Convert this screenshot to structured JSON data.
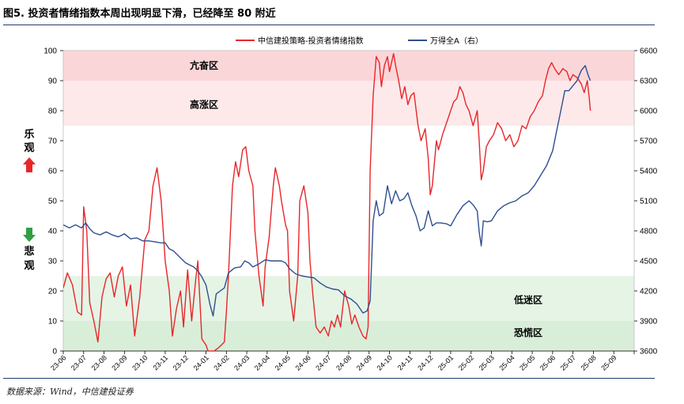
{
  "header": {
    "title": "图5. 投资者情绪指数本周出现明显下滑，已经降至 80 附近"
  },
  "footer": {
    "source": "数据来源：Wind，中信建投证券"
  },
  "side_labels": {
    "optimistic": "乐观",
    "pessimistic": "悲观"
  },
  "colors": {
    "sentiment": "#e8262a",
    "index": "#2f4f8f",
    "panic_band": "#e6f4e6",
    "high_band": "#fde9ea",
    "frenzy_band": "#fbd6d9",
    "up_arrow": "#e8262a",
    "down_arrow": "#2ea043",
    "rule": "#1f3c6e"
  },
  "chart_data": {
    "type": "line",
    "title": "",
    "xlabel": "",
    "ylabel": "",
    "x_ticks": [
      "23-06",
      "23-07",
      "23-08",
      "23-09",
      "23-10",
      "23-11",
      "23-12",
      "24-01",
      "24-02",
      "24-03",
      "24-04",
      "24-05",
      "24-06",
      "24-07",
      "24-08",
      "24-09",
      "24-10",
      "24-11",
      "24-12",
      "25-01",
      "25-02",
      "25-03",
      "25-04",
      "25-05",
      "25-06",
      "25-07",
      "25-08",
      "25-09"
    ],
    "y_left": {
      "min": 0,
      "max": 100,
      "ticks": [
        "0",
        "10",
        "20",
        "30",
        "40",
        "50",
        "60",
        "70",
        "80",
        "90",
        "100"
      ]
    },
    "y_right": {
      "min": 3600,
      "max": 6600,
      "ticks": [
        "3600",
        "3900",
        "4200",
        "4500",
        "4800",
        "5100",
        "5400",
        "5700",
        "6000",
        "6300",
        "6600"
      ]
    },
    "zones": [
      {
        "label": "亢奋区",
        "from": 90,
        "to": 100
      },
      {
        "label": "高涨区",
        "from": 75,
        "to": 90
      },
      {
        "label": "低迷区",
        "from": 10,
        "to": 25
      },
      {
        "label": "恐慌区",
        "from": 0,
        "to": 10
      }
    ],
    "legend_position": "top",
    "grid": false,
    "series": [
      {
        "name": "中信建投策略-投资者情绪指数",
        "axis": "left",
        "points": [
          [
            0,
            21
          ],
          [
            0.2,
            26
          ],
          [
            0.45,
            22
          ],
          [
            0.7,
            13
          ],
          [
            0.9,
            12
          ],
          [
            1.0,
            48
          ],
          [
            1.15,
            40
          ],
          [
            1.3,
            16
          ],
          [
            1.5,
            10
          ],
          [
            1.7,
            3
          ],
          [
            1.9,
            18
          ],
          [
            2.1,
            24
          ],
          [
            2.3,
            26
          ],
          [
            2.5,
            18
          ],
          [
            2.7,
            25
          ],
          [
            2.9,
            28
          ],
          [
            3.1,
            15
          ],
          [
            3.3,
            22
          ],
          [
            3.5,
            5
          ],
          [
            3.75,
            18
          ],
          [
            4.0,
            37
          ],
          [
            4.2,
            40
          ],
          [
            4.4,
            55
          ],
          [
            4.6,
            61
          ],
          [
            4.8,
            50
          ],
          [
            5.0,
            30
          ],
          [
            5.2,
            20
          ],
          [
            5.35,
            5
          ],
          [
            5.55,
            14
          ],
          [
            5.75,
            20
          ],
          [
            5.9,
            8
          ],
          [
            6.1,
            27
          ],
          [
            6.3,
            10
          ],
          [
            6.5,
            24
          ],
          [
            6.6,
            30
          ],
          [
            6.8,
            4
          ],
          [
            7.0,
            2
          ],
          [
            7.1,
            0
          ],
          [
            7.4,
            0
          ],
          [
            7.6,
            1
          ],
          [
            7.9,
            3
          ],
          [
            8.0,
            13
          ],
          [
            8.1,
            25
          ],
          [
            8.3,
            55
          ],
          [
            8.45,
            63
          ],
          [
            8.6,
            58
          ],
          [
            8.8,
            67
          ],
          [
            8.95,
            68
          ],
          [
            9.1,
            60
          ],
          [
            9.3,
            55
          ],
          [
            9.4,
            40
          ],
          [
            9.6,
            25
          ],
          [
            9.8,
            15
          ],
          [
            9.9,
            28
          ],
          [
            10.1,
            38
          ],
          [
            10.3,
            55
          ],
          [
            10.4,
            61
          ],
          [
            10.6,
            55
          ],
          [
            10.7,
            50
          ],
          [
            10.9,
            42
          ],
          [
            11.0,
            40
          ],
          [
            11.1,
            20
          ],
          [
            11.3,
            10
          ],
          [
            11.5,
            25
          ],
          [
            11.6,
            50
          ],
          [
            11.8,
            55
          ],
          [
            12.0,
            46
          ],
          [
            12.1,
            30
          ],
          [
            12.25,
            18
          ],
          [
            12.4,
            8
          ],
          [
            12.6,
            6
          ],
          [
            12.8,
            8
          ],
          [
            13.0,
            5
          ],
          [
            13.15,
            10
          ],
          [
            13.3,
            8
          ],
          [
            13.45,
            12
          ],
          [
            13.6,
            8
          ],
          [
            13.8,
            20
          ],
          [
            14.0,
            15
          ],
          [
            14.15,
            9
          ],
          [
            14.3,
            12
          ],
          [
            14.5,
            8
          ],
          [
            14.7,
            5
          ],
          [
            14.85,
            4
          ],
          [
            14.95,
            8
          ],
          [
            15.05,
            60
          ],
          [
            15.2,
            85
          ],
          [
            15.35,
            98
          ],
          [
            15.5,
            96
          ],
          [
            15.6,
            88
          ],
          [
            15.75,
            95
          ],
          [
            15.9,
            98
          ],
          [
            16.0,
            93
          ],
          [
            16.2,
            99
          ],
          [
            16.3,
            95
          ],
          [
            16.45,
            90
          ],
          [
            16.6,
            84
          ],
          [
            16.75,
            88
          ],
          [
            16.9,
            82
          ],
          [
            17.05,
            85
          ],
          [
            17.2,
            86
          ],
          [
            17.4,
            75
          ],
          [
            17.55,
            70
          ],
          [
            17.75,
            74
          ],
          [
            17.9,
            64
          ],
          [
            18.0,
            52
          ],
          [
            18.1,
            55
          ],
          [
            18.3,
            70
          ],
          [
            18.4,
            67
          ],
          [
            18.6,
            72
          ],
          [
            18.8,
            76
          ],
          [
            19.0,
            80
          ],
          [
            19.15,
            83
          ],
          [
            19.3,
            84
          ],
          [
            19.45,
            88
          ],
          [
            19.6,
            86
          ],
          [
            19.75,
            82
          ],
          [
            19.9,
            80
          ],
          [
            20.1,
            75
          ],
          [
            20.3,
            80
          ],
          [
            20.4,
            70
          ],
          [
            20.5,
            57
          ],
          [
            20.6,
            60
          ],
          [
            20.75,
            68
          ],
          [
            20.9,
            70
          ],
          [
            21.1,
            72
          ],
          [
            21.3,
            76
          ],
          [
            21.5,
            74
          ],
          [
            21.7,
            70
          ],
          [
            21.9,
            72
          ],
          [
            22.1,
            68
          ],
          [
            22.3,
            70
          ],
          [
            22.5,
            75
          ],
          [
            22.7,
            74
          ],
          [
            22.9,
            78
          ],
          [
            23.1,
            80
          ],
          [
            23.3,
            83
          ],
          [
            23.5,
            85
          ],
          [
            23.65,
            90
          ],
          [
            23.8,
            94
          ],
          [
            23.95,
            96
          ],
          [
            24.1,
            94
          ],
          [
            24.3,
            92
          ],
          [
            24.5,
            94
          ],
          [
            24.7,
            93
          ],
          [
            24.85,
            90
          ],
          [
            25.0,
            92
          ],
          [
            25.2,
            91
          ],
          [
            25.4,
            89
          ],
          [
            25.55,
            86
          ],
          [
            25.7,
            90
          ],
          [
            25.8,
            84
          ],
          [
            25.85,
            80
          ]
        ]
      },
      {
        "name": "万得全A（右）",
        "axis": "right",
        "points": [
          [
            0,
            4860
          ],
          [
            0.3,
            4830
          ],
          [
            0.6,
            4860
          ],
          [
            0.9,
            4830
          ],
          [
            1.1,
            4880
          ],
          [
            1.3,
            4820
          ],
          [
            1.5,
            4780
          ],
          [
            1.8,
            4760
          ],
          [
            2.1,
            4790
          ],
          [
            2.4,
            4760
          ],
          [
            2.7,
            4740
          ],
          [
            3.0,
            4770
          ],
          [
            3.3,
            4720
          ],
          [
            3.6,
            4730
          ],
          [
            3.9,
            4700
          ],
          [
            4.2,
            4700
          ],
          [
            4.5,
            4690
          ],
          [
            4.8,
            4680
          ],
          [
            5.0,
            4680
          ],
          [
            5.2,
            4620
          ],
          [
            5.4,
            4600
          ],
          [
            5.6,
            4560
          ],
          [
            5.8,
            4520
          ],
          [
            6.0,
            4480
          ],
          [
            6.2,
            4460
          ],
          [
            6.4,
            4440
          ],
          [
            6.6,
            4400
          ],
          [
            6.8,
            4340
          ],
          [
            7.0,
            4260
          ],
          [
            7.2,
            4060
          ],
          [
            7.35,
            3950
          ],
          [
            7.5,
            4170
          ],
          [
            7.7,
            4200
          ],
          [
            7.9,
            4230
          ],
          [
            8.1,
            4380
          ],
          [
            8.4,
            4430
          ],
          [
            8.7,
            4440
          ],
          [
            8.9,
            4500
          ],
          [
            9.1,
            4480
          ],
          [
            9.3,
            4440
          ],
          [
            9.6,
            4470
          ],
          [
            9.9,
            4510
          ],
          [
            10.2,
            4500
          ],
          [
            10.5,
            4500
          ],
          [
            10.7,
            4500
          ],
          [
            10.9,
            4480
          ],
          [
            11.1,
            4420
          ],
          [
            11.4,
            4370
          ],
          [
            11.7,
            4350
          ],
          [
            12.0,
            4340
          ],
          [
            12.3,
            4330
          ],
          [
            12.6,
            4280
          ],
          [
            12.9,
            4240
          ],
          [
            13.2,
            4220
          ],
          [
            13.5,
            4210
          ],
          [
            13.8,
            4150
          ],
          [
            14.1,
            4120
          ],
          [
            14.4,
            4070
          ],
          [
            14.7,
            3980
          ],
          [
            14.9,
            4000
          ],
          [
            15.05,
            4100
          ],
          [
            15.2,
            4900
          ],
          [
            15.35,
            5100
          ],
          [
            15.5,
            4950
          ],
          [
            15.7,
            4980
          ],
          [
            15.9,
            5250
          ],
          [
            16.1,
            5070
          ],
          [
            16.3,
            5200
          ],
          [
            16.5,
            5100
          ],
          [
            16.7,
            5120
          ],
          [
            16.9,
            5180
          ],
          [
            17.1,
            5050
          ],
          [
            17.3,
            4950
          ],
          [
            17.5,
            4800
          ],
          [
            17.7,
            4830
          ],
          [
            17.9,
            5000
          ],
          [
            18.1,
            4850
          ],
          [
            18.3,
            4880
          ],
          [
            18.5,
            4880
          ],
          [
            18.8,
            4870
          ],
          [
            19.0,
            4850
          ],
          [
            19.3,
            4960
          ],
          [
            19.6,
            5050
          ],
          [
            19.9,
            5100
          ],
          [
            20.1,
            5060
          ],
          [
            20.3,
            5000
          ],
          [
            20.4,
            4790
          ],
          [
            20.5,
            4650
          ],
          [
            20.6,
            4900
          ],
          [
            20.8,
            4890
          ],
          [
            21.0,
            4900
          ],
          [
            21.3,
            5000
          ],
          [
            21.6,
            5050
          ],
          [
            21.9,
            5080
          ],
          [
            22.2,
            5100
          ],
          [
            22.5,
            5150
          ],
          [
            22.8,
            5180
          ],
          [
            23.1,
            5250
          ],
          [
            23.4,
            5350
          ],
          [
            23.7,
            5450
          ],
          [
            24.0,
            5600
          ],
          [
            24.2,
            5800
          ],
          [
            24.4,
            6000
          ],
          [
            24.6,
            6200
          ],
          [
            24.8,
            6200
          ],
          [
            25.0,
            6250
          ],
          [
            25.2,
            6300
          ],
          [
            25.4,
            6400
          ],
          [
            25.6,
            6450
          ],
          [
            25.75,
            6350
          ],
          [
            25.85,
            6300
          ]
        ]
      }
    ]
  }
}
